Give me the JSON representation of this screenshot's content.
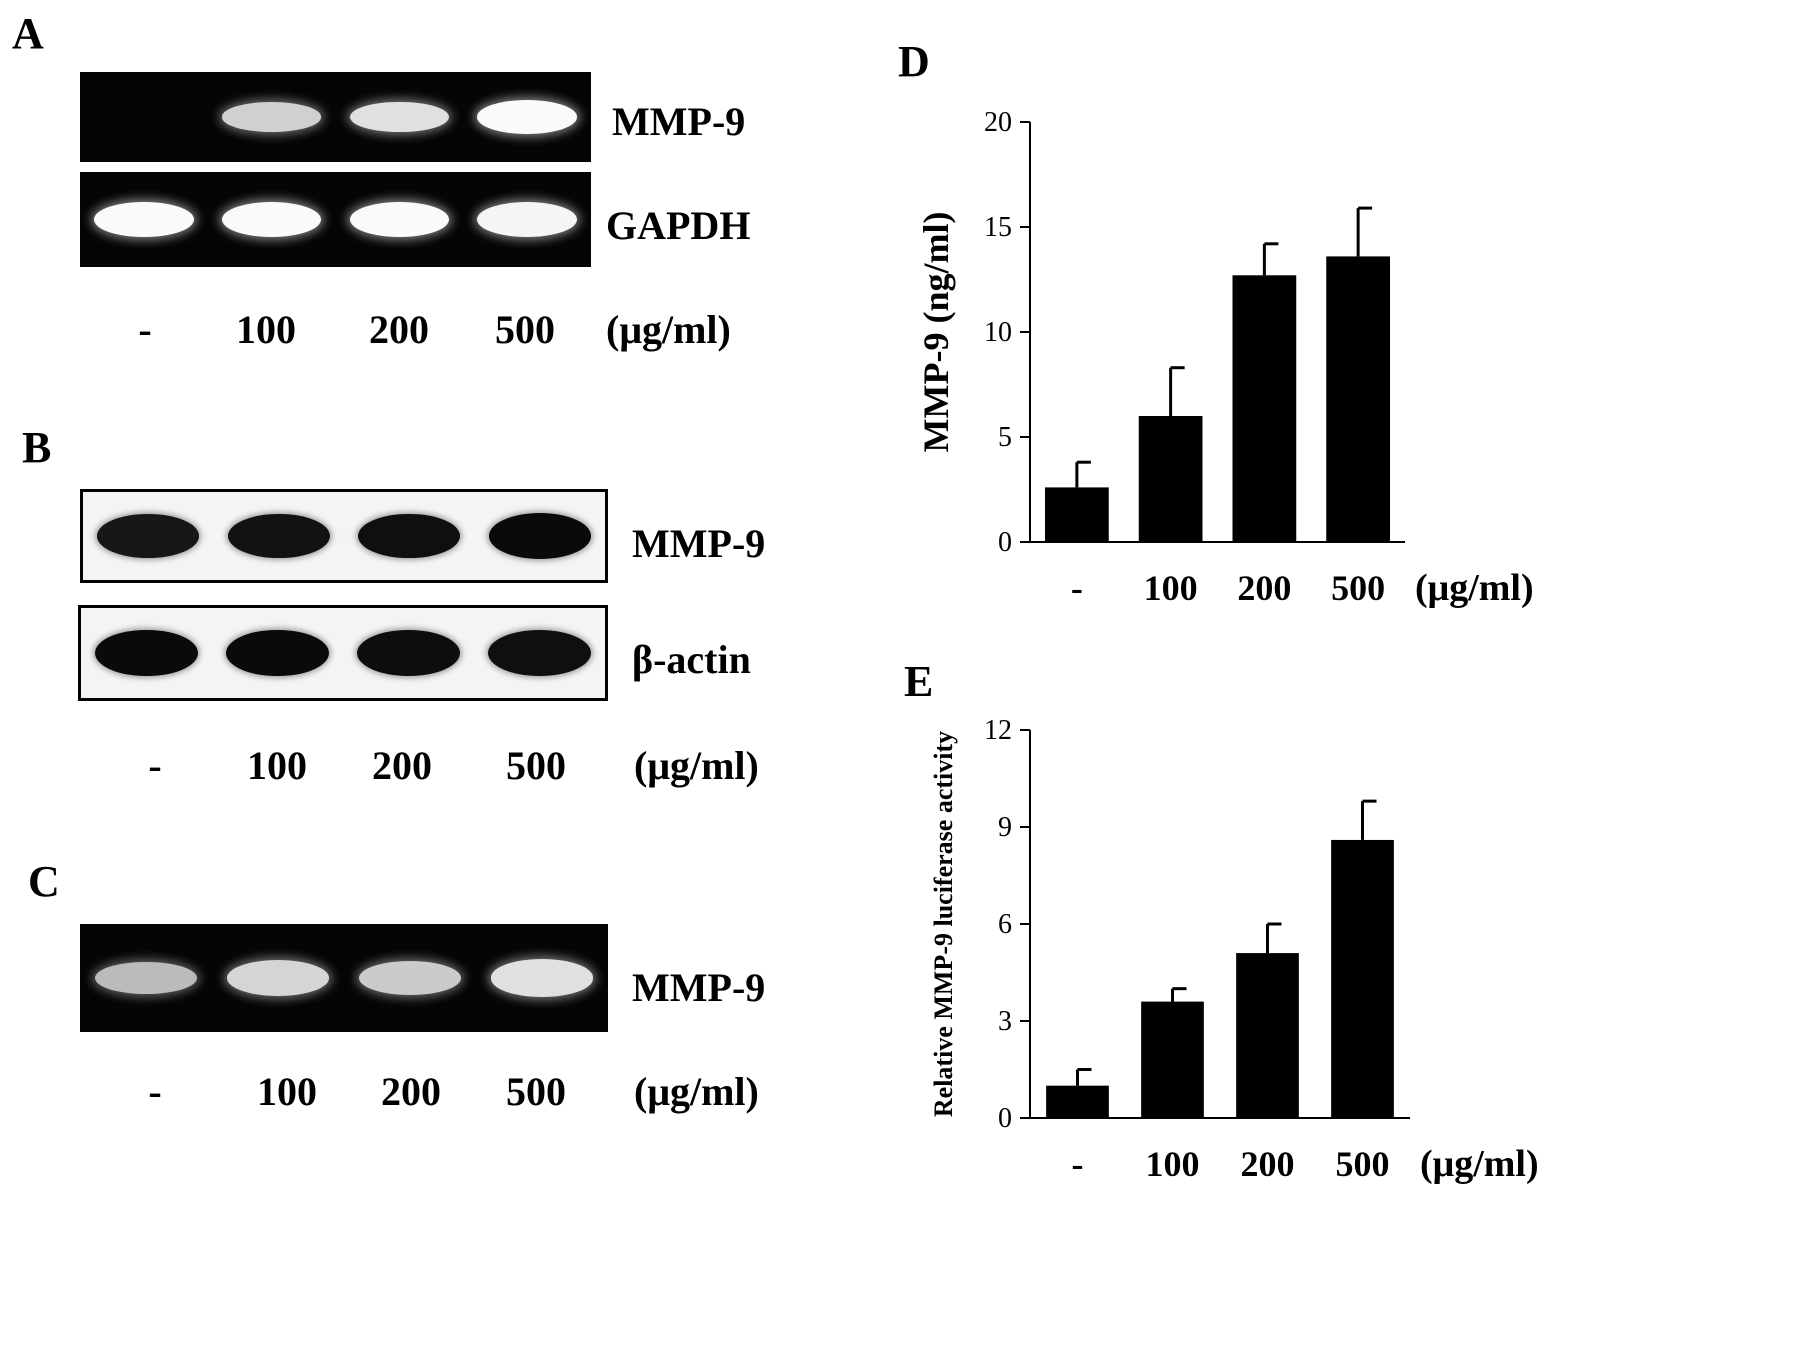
{
  "panels": {
    "A": {
      "letter": "A",
      "bands": [
        {
          "label": "MMP-9",
          "intensity": [
            0.0,
            0.55,
            0.7,
            0.95
          ]
        },
        {
          "label": "GAPDH",
          "intensity": [
            0.95,
            0.95,
            0.95,
            0.9
          ]
        }
      ],
      "lanes": [
        "-",
        "100",
        "200",
        "500"
      ],
      "unit": "(μg/ml)"
    },
    "B": {
      "letter": "B",
      "bands": [
        {
          "label": "MMP-9",
          "intensity": [
            0.75,
            0.85,
            0.9,
            1.0
          ]
        },
        {
          "label": "β-actin",
          "intensity": [
            1.0,
            1.0,
            0.95,
            0.9
          ]
        }
      ],
      "lanes": [
        "-",
        "100",
        "200",
        "500"
      ],
      "unit": "(μg/ml)"
    },
    "C": {
      "letter": "C",
      "bands": [
        {
          "label": "MMP-9",
          "intensity": [
            0.35,
            0.6,
            0.5,
            0.7
          ]
        }
      ],
      "lanes": [
        "-",
        "100",
        "200",
        "500"
      ],
      "unit": "(μg/ml)"
    }
  },
  "chart_data": [
    {
      "panel": "D",
      "type": "bar",
      "categories": [
        "-",
        "100",
        "200",
        "500"
      ],
      "values": [
        2.6,
        6.0,
        12.7,
        13.6
      ],
      "errors": [
        1.2,
        2.3,
        1.5,
        2.3
      ],
      "ylabel": "MMP-9 (ng/ml)",
      "xunit": "(μg/ml)",
      "ylim": [
        0,
        20
      ],
      "yticks": [
        0,
        5,
        10,
        15,
        20
      ],
      "grid": false,
      "bar_color": "#000000"
    },
    {
      "panel": "E",
      "type": "bar",
      "categories": [
        "-",
        "100",
        "200",
        "500"
      ],
      "values": [
        1.0,
        3.6,
        5.1,
        8.6
      ],
      "errors": [
        0.5,
        0.4,
        0.9,
        1.2
      ],
      "ylabel": "Relative MMP-9 luciferase activity",
      "xunit": "(μg/ml)",
      "ylim": [
        0,
        12
      ],
      "yticks": [
        0,
        3,
        6,
        9,
        12
      ],
      "grid": false,
      "bar_color": "#000000"
    }
  ]
}
